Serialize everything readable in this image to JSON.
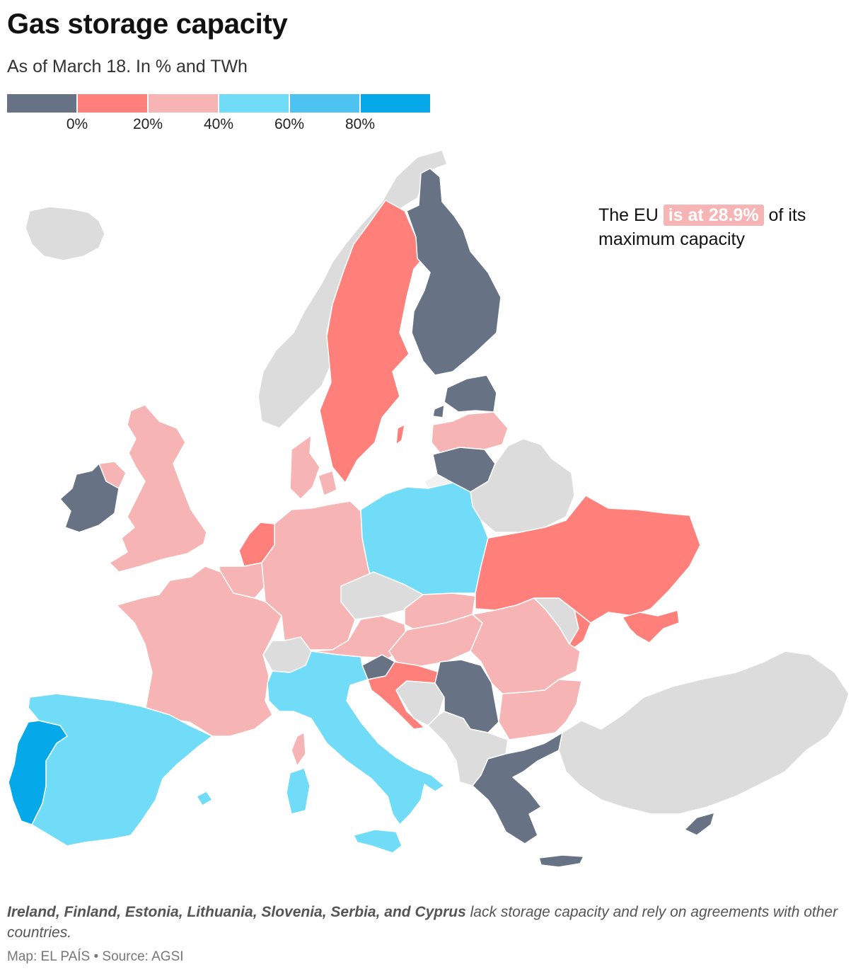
{
  "title": "Gas storage capacity",
  "subtitle": "As of March 18. In % and TWh",
  "colors": {
    "no_data": "#dcdcdc",
    "none": "#687285",
    "band_0_20": "#ff7f7a",
    "band_20_40": "#f7b4b4",
    "band_40_60": "#70dcf7",
    "band_60_80": "#4fc3ef",
    "band_80_100": "#05a9e9"
  },
  "legend": {
    "swatches": [
      "#687285",
      "#ff7f7a",
      "#f7b4b4",
      "#70dcf7",
      "#4fc3ef",
      "#05a9e9"
    ],
    "ticks": [
      "0%",
      "20%",
      "40%",
      "60%",
      "80%"
    ]
  },
  "callout": {
    "before": "The EU",
    "highlight": "is at 28.9%",
    "after": "of its maximum capacity"
  },
  "note": {
    "countries": "Ireland, Finland, Estonia, Lithuania, Slovenia, Serbia, and Cyprus",
    "text": "lack storage capacity and rely on agreements with other countries."
  },
  "source": "Map: EL PAÍS • Source: AGSI",
  "regions": [
    {
      "name": "Iceland",
      "band": "no_data"
    },
    {
      "name": "Norway",
      "band": "no_data"
    },
    {
      "name": "Sweden",
      "band": "band_0_20"
    },
    {
      "name": "Finland",
      "band": "none"
    },
    {
      "name": "Estonia",
      "band": "none"
    },
    {
      "name": "Latvia",
      "band": "band_20_40"
    },
    {
      "name": "Lithuania",
      "band": "none"
    },
    {
      "name": "Belarus",
      "band": "no_data"
    },
    {
      "name": "Ireland",
      "band": "none"
    },
    {
      "name": "United Kingdom",
      "band": "band_20_40"
    },
    {
      "name": "Denmark",
      "band": "band_20_40"
    },
    {
      "name": "Netherlands",
      "band": "band_0_20"
    },
    {
      "name": "Belgium",
      "band": "band_20_40"
    },
    {
      "name": "Germany",
      "band": "band_20_40"
    },
    {
      "name": "Poland",
      "band": "band_40_60"
    },
    {
      "name": "Ukraine",
      "band": "band_0_20"
    },
    {
      "name": "France",
      "band": "band_20_40"
    },
    {
      "name": "Czechia",
      "band": "no_data"
    },
    {
      "name": "Slovakia",
      "band": "band_20_40"
    },
    {
      "name": "Austria",
      "band": "band_20_40"
    },
    {
      "name": "Hungary",
      "band": "band_20_40"
    },
    {
      "name": "Switzerland",
      "band": "no_data"
    },
    {
      "name": "Moldova",
      "band": "no_data"
    },
    {
      "name": "Romania",
      "band": "band_20_40"
    },
    {
      "name": "Slovenia",
      "band": "none"
    },
    {
      "name": "Croatia",
      "band": "band_0_20"
    },
    {
      "name": "Bosnia and Herzegovina",
      "band": "no_data"
    },
    {
      "name": "Serbia",
      "band": "none"
    },
    {
      "name": "Bulgaria",
      "band": "band_20_40"
    },
    {
      "name": "Italy",
      "band": "band_40_60"
    },
    {
      "name": "Spain",
      "band": "band_40_60"
    },
    {
      "name": "Portugal",
      "band": "band_80_100"
    },
    {
      "name": "Greece",
      "band": "none"
    },
    {
      "name": "Turkey",
      "band": "no_data"
    },
    {
      "name": "Cyprus",
      "band": "none"
    },
    {
      "name": "Balkans (other)",
      "band": "no_data"
    }
  ]
}
